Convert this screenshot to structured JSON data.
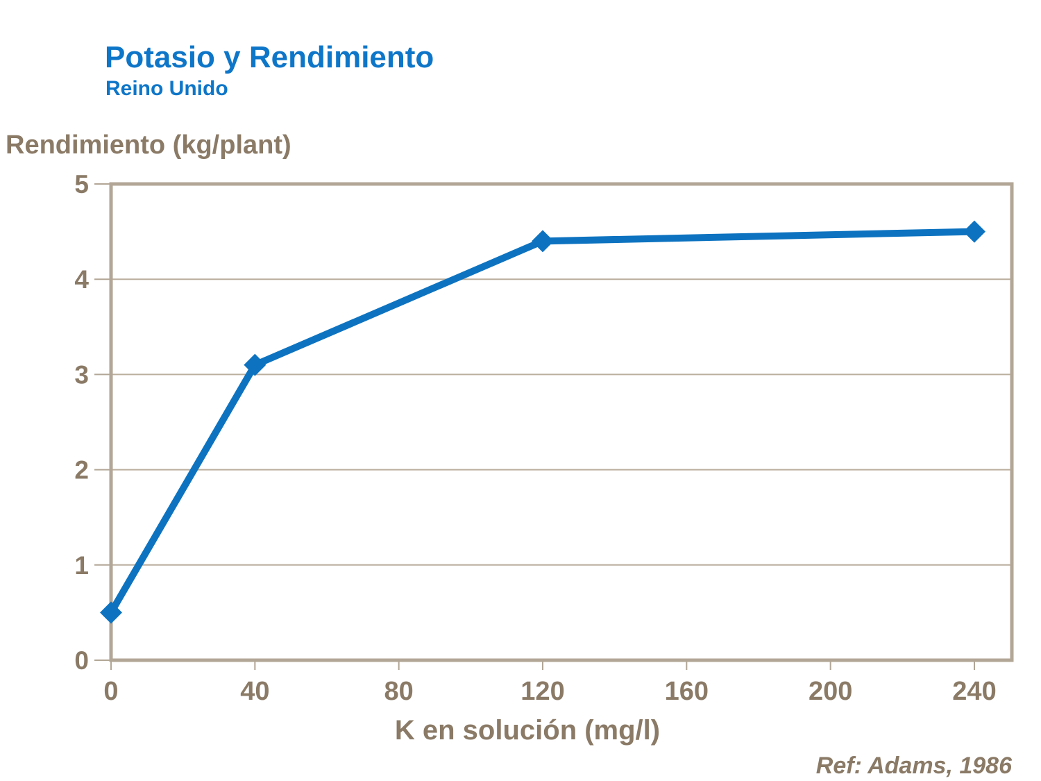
{
  "header": {
    "title": "Potasio y Rendimiento",
    "subtitle": "Reino Unido"
  },
  "footer": {
    "reference": "Ref: Adams, 1986"
  },
  "chart_data": {
    "type": "line",
    "title": "Potasio y Rendimiento",
    "subtitle": "Reino Unido",
    "xlabel": "K en solución (mg/l)",
    "ylabel": "Rendimiento (kg/plant)",
    "x": [
      0,
      40,
      120,
      240
    ],
    "y": [
      0.5,
      3.1,
      4.4,
      4.5
    ],
    "x_ticks": [
      0,
      40,
      80,
      120,
      160,
      200,
      240
    ],
    "y_ticks": [
      0,
      1,
      2,
      3,
      4,
      5
    ],
    "xlim": [
      0,
      250
    ],
    "ylim": [
      0,
      5
    ],
    "grid": "horizontal",
    "legend": "none",
    "marker": "diamond",
    "annotation": "Ref: Adams, 1986"
  },
  "colors": {
    "title_blue": "#0E76C8",
    "line_blue": "#0D73C0",
    "axis_tan": "#B2A696",
    "grid_tan": "#BAAE9D",
    "label_brown": "#8A7A66"
  }
}
